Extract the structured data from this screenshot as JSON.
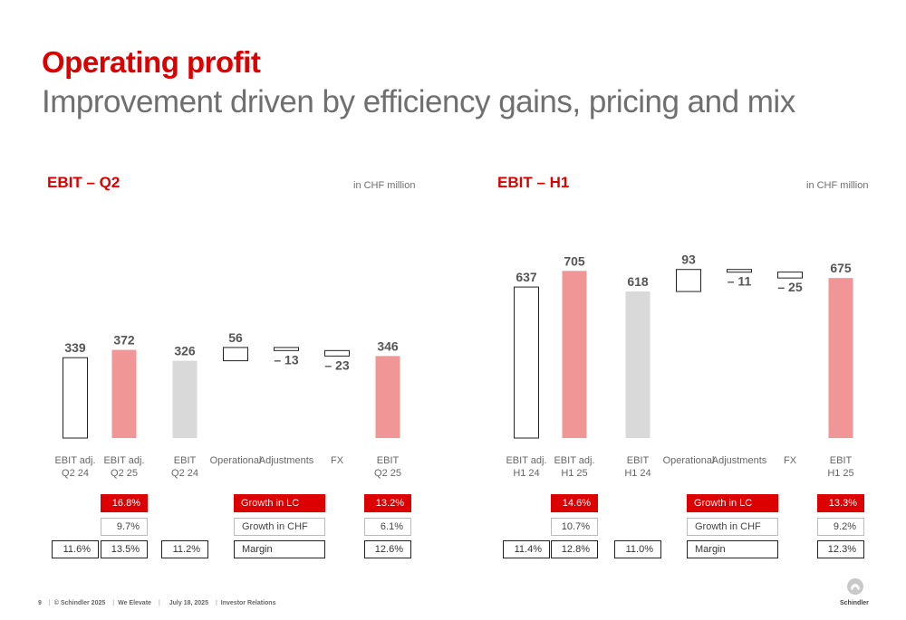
{
  "header": {
    "title": "Operating profit",
    "subtitle": "Improvement driven by efficiency gains, pricing and mix"
  },
  "footer": {
    "page": "9",
    "copyright": "© Schindler 2025",
    "tagline": "We Elevate",
    "date": "July 18, 2025",
    "section": "Investor Relations"
  },
  "logo": {
    "text": "Schindler",
    "icon": "schindler-logo-icon"
  },
  "colors": {
    "accent": "#dc0000",
    "highlight": "#f09696",
    "neutral": "#d9d9d9",
    "outline": "#222222"
  },
  "row_labels": {
    "growth_lc": "Growth in LC",
    "growth_chf": "Growth in CHF",
    "margin": "Margin"
  },
  "chart_data": [
    {
      "type": "bar",
      "title": "EBIT – Q2",
      "unit": "in CHF million",
      "categories": [
        "EBIT adj.\nQ2 24",
        "EBIT adj.\nQ2 25",
        "EBIT\nQ2 24",
        "Operational",
        "Adjustments",
        "FX",
        "EBIT\nQ2 25"
      ],
      "values": [
        339,
        372,
        326,
        56,
        -13,
        -23,
        346
      ],
      "value_labels": [
        "339",
        "372",
        "326",
        "56",
        "– 13",
        "– 23",
        "346"
      ],
      "bar_kinds": [
        "total-outline",
        "total-highlight",
        "total-neutral",
        "delta",
        "delta",
        "delta",
        "total-highlight"
      ],
      "growth_lc": [
        "",
        "16.8%",
        "",
        "",
        "",
        "",
        "13.2%"
      ],
      "growth_chf": [
        "",
        "9.7%",
        "",
        "",
        "",
        "",
        "6.1%"
      ],
      "margin": [
        "11.6%",
        "13.5%",
        "11.2%",
        "",
        "",
        "",
        "12.6%"
      ]
    },
    {
      "type": "bar",
      "title": "EBIT – H1",
      "unit": "in CHF million",
      "categories": [
        "EBIT adj.\nH1 24",
        "EBIT adj.\nH1 25",
        "EBIT\nH1 24",
        "Operational",
        "Adjustments",
        "FX",
        "EBIT\nH1 25"
      ],
      "values": [
        637,
        705,
        618,
        93,
        -11,
        -25,
        675
      ],
      "value_labels": [
        "637",
        "705",
        "618",
        "93",
        "– 11",
        "– 25",
        "675"
      ],
      "bar_kinds": [
        "total-outline",
        "total-highlight",
        "total-neutral",
        "delta",
        "delta",
        "delta",
        "total-highlight"
      ],
      "growth_lc": [
        "",
        "14.6%",
        "",
        "",
        "",
        "",
        "13.3%"
      ],
      "growth_chf": [
        "",
        "10.7%",
        "",
        "",
        "",
        "",
        "9.2%"
      ],
      "margin": [
        "11.4%",
        "12.8%",
        "11.0%",
        "",
        "",
        "",
        "12.3%"
      ]
    }
  ]
}
